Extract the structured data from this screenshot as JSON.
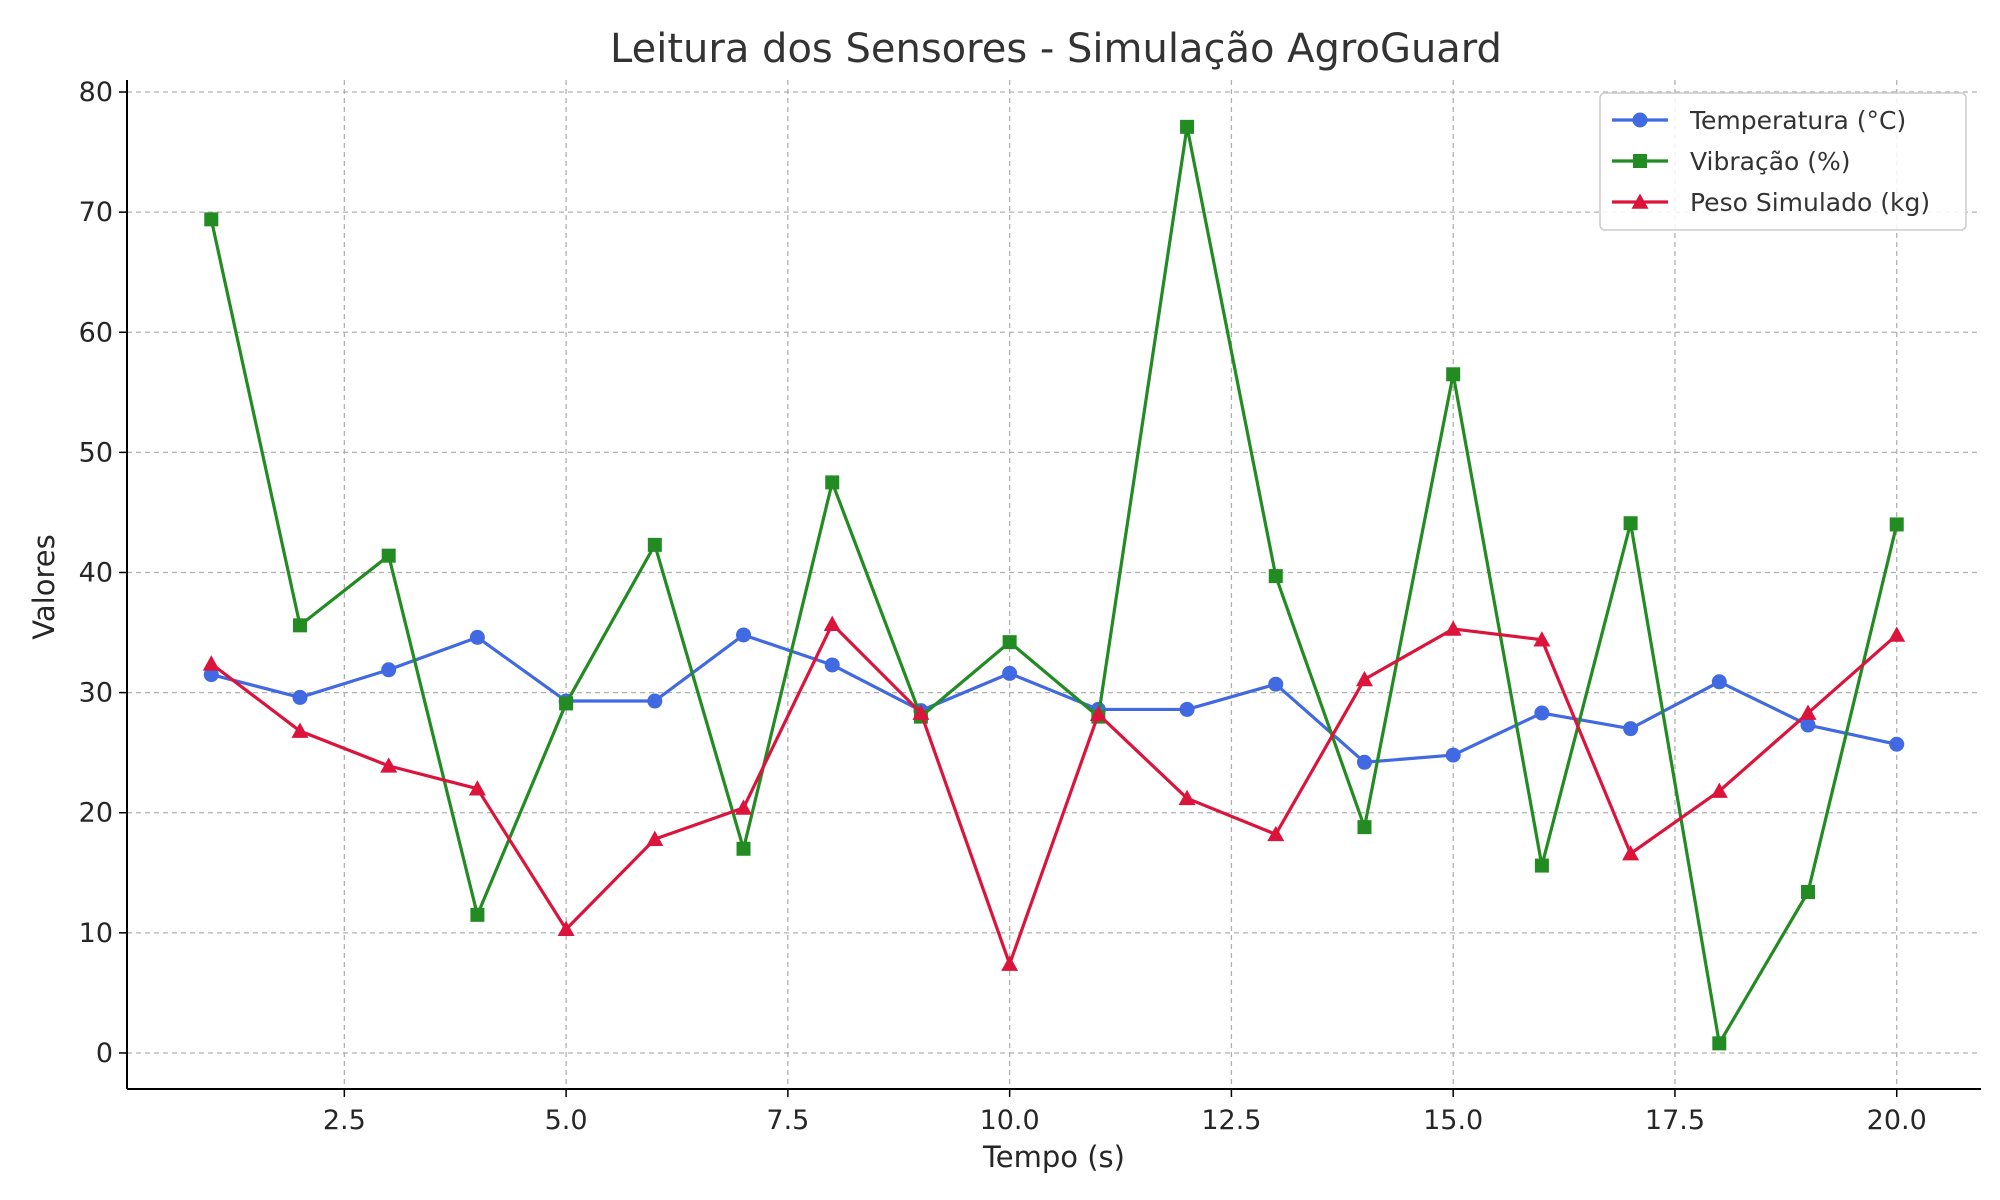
{
  "chart_data": {
    "type": "line",
    "title": "Leitura dos Sensores - Simulação AgroGuard",
    "xlabel": "Tempo (s)",
    "ylabel": "Valores",
    "xlim": [
      0.05,
      20.95
    ],
    "ylim": [
      -3,
      81
    ],
    "xticks": [
      2.5,
      5.0,
      7.5,
      10.0,
      12.5,
      15.0,
      17.5,
      20.0
    ],
    "xtick_labels": [
      "2.5",
      "5.0",
      "7.5",
      "10.0",
      "12.5",
      "15.0",
      "17.5",
      "20.0"
    ],
    "yticks": [
      0,
      10,
      20,
      30,
      40,
      50,
      60,
      70,
      80
    ],
    "ytick_labels": [
      "0",
      "10",
      "20",
      "30",
      "40",
      "50",
      "60",
      "70",
      "80"
    ],
    "grid": true,
    "legend_position": "top-right",
    "x": [
      1,
      2,
      3,
      4,
      5,
      6,
      7,
      8,
      9,
      10,
      11,
      12,
      13,
      14,
      15,
      16,
      17,
      18,
      19,
      20
    ],
    "series": [
      {
        "name": "Temperatura (°C)",
        "color": "#4169e1",
        "marker": "circle",
        "values": [
          31.5,
          29.6,
          31.9,
          34.6,
          29.3,
          29.3,
          34.8,
          32.3,
          28.5,
          31.6,
          28.6,
          28.6,
          30.7,
          24.2,
          24.8,
          28.3,
          27.0,
          30.9,
          27.3,
          25.7
        ]
      },
      {
        "name": "Vibração (%)",
        "color": "#228b22",
        "marker": "square",
        "values": [
          69.4,
          35.6,
          41.4,
          11.5,
          29.1,
          42.3,
          17.0,
          47.5,
          28.0,
          34.2,
          28.0,
          77.1,
          39.7,
          18.8,
          56.5,
          15.6,
          44.1,
          0.8,
          13.4,
          44.0
        ]
      },
      {
        "name": "Peso Simulado (kg)",
        "color": "#dc143c",
        "marker": "triangle",
        "values": [
          32.4,
          26.8,
          23.9,
          22.0,
          10.3,
          17.8,
          20.4,
          35.7,
          28.3,
          7.4,
          28.2,
          21.2,
          18.2,
          31.1,
          35.3,
          34.4,
          16.6,
          21.8,
          28.3,
          34.8
        ]
      }
    ]
  }
}
